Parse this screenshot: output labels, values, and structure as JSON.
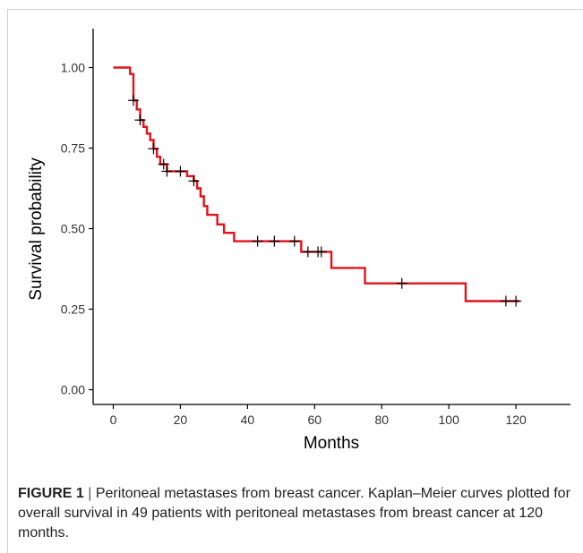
{
  "chart_data": {
    "type": "line",
    "subtype": "kaplan-meier step curve",
    "xlabel": "Months",
    "ylabel": "Survival probability",
    "xlim": [
      -5,
      135
    ],
    "ylim": [
      0,
      1.0
    ],
    "x_ticks": [
      "0",
      "20",
      "40",
      "60",
      "80",
      "100",
      "120"
    ],
    "y_ticks": [
      "0.00",
      "0.25",
      "0.50",
      "0.75",
      "1.00"
    ],
    "grid": false,
    "legend": "none",
    "series": [
      {
        "color": "#e2131b",
        "steps": [
          {
            "x": 0,
            "y": 1.0
          },
          {
            "x": 5,
            "y": 0.98
          },
          {
            "x": 6,
            "y": 0.898
          },
          {
            "x": 7,
            "y": 0.87
          },
          {
            "x": 8,
            "y": 0.837
          },
          {
            "x": 9,
            "y": 0.816
          },
          {
            "x": 10,
            "y": 0.795
          },
          {
            "x": 11,
            "y": 0.775
          },
          {
            "x": 12,
            "y": 0.748
          },
          {
            "x": 13,
            "y": 0.723
          },
          {
            "x": 14,
            "y": 0.7
          },
          {
            "x": 16,
            "y": 0.678
          },
          {
            "x": 22,
            "y": 0.663
          },
          {
            "x": 24,
            "y": 0.648
          },
          {
            "x": 25,
            "y": 0.625
          },
          {
            "x": 26,
            "y": 0.6
          },
          {
            "x": 27,
            "y": 0.57
          },
          {
            "x": 28,
            "y": 0.543
          },
          {
            "x": 31,
            "y": 0.513
          },
          {
            "x": 33,
            "y": 0.487
          },
          {
            "x": 36,
            "y": 0.461
          },
          {
            "x": 56,
            "y": 0.428
          },
          {
            "x": 65,
            "y": 0.378
          },
          {
            "x": 75,
            "y": 0.33
          },
          {
            "x": 105,
            "y": 0.275
          },
          {
            "x": 121,
            "y": 0.275
          }
        ],
        "censored": [
          {
            "x": 6,
            "y": 0.898
          },
          {
            "x": 8,
            "y": 0.837
          },
          {
            "x": 12,
            "y": 0.748
          },
          {
            "x": 15,
            "y": 0.7
          },
          {
            "x": 16,
            "y": 0.678
          },
          {
            "x": 20,
            "y": 0.678
          },
          {
            "x": 24,
            "y": 0.648
          },
          {
            "x": 43,
            "y": 0.461
          },
          {
            "x": 48,
            "y": 0.461
          },
          {
            "x": 54,
            "y": 0.461
          },
          {
            "x": 58,
            "y": 0.428
          },
          {
            "x": 61,
            "y": 0.428
          },
          {
            "x": 62,
            "y": 0.428
          },
          {
            "x": 86,
            "y": 0.33
          },
          {
            "x": 117,
            "y": 0.275
          },
          {
            "x": 120,
            "y": 0.275
          }
        ]
      }
    ]
  },
  "caption": {
    "label": "FIGURE 1",
    "separator": "|",
    "text": "Peritoneal metastases from breast cancer. Kaplan–Meier curves plotted for overall survival in 49 patients with peritoneal metastases from breast cancer at 120 months."
  }
}
